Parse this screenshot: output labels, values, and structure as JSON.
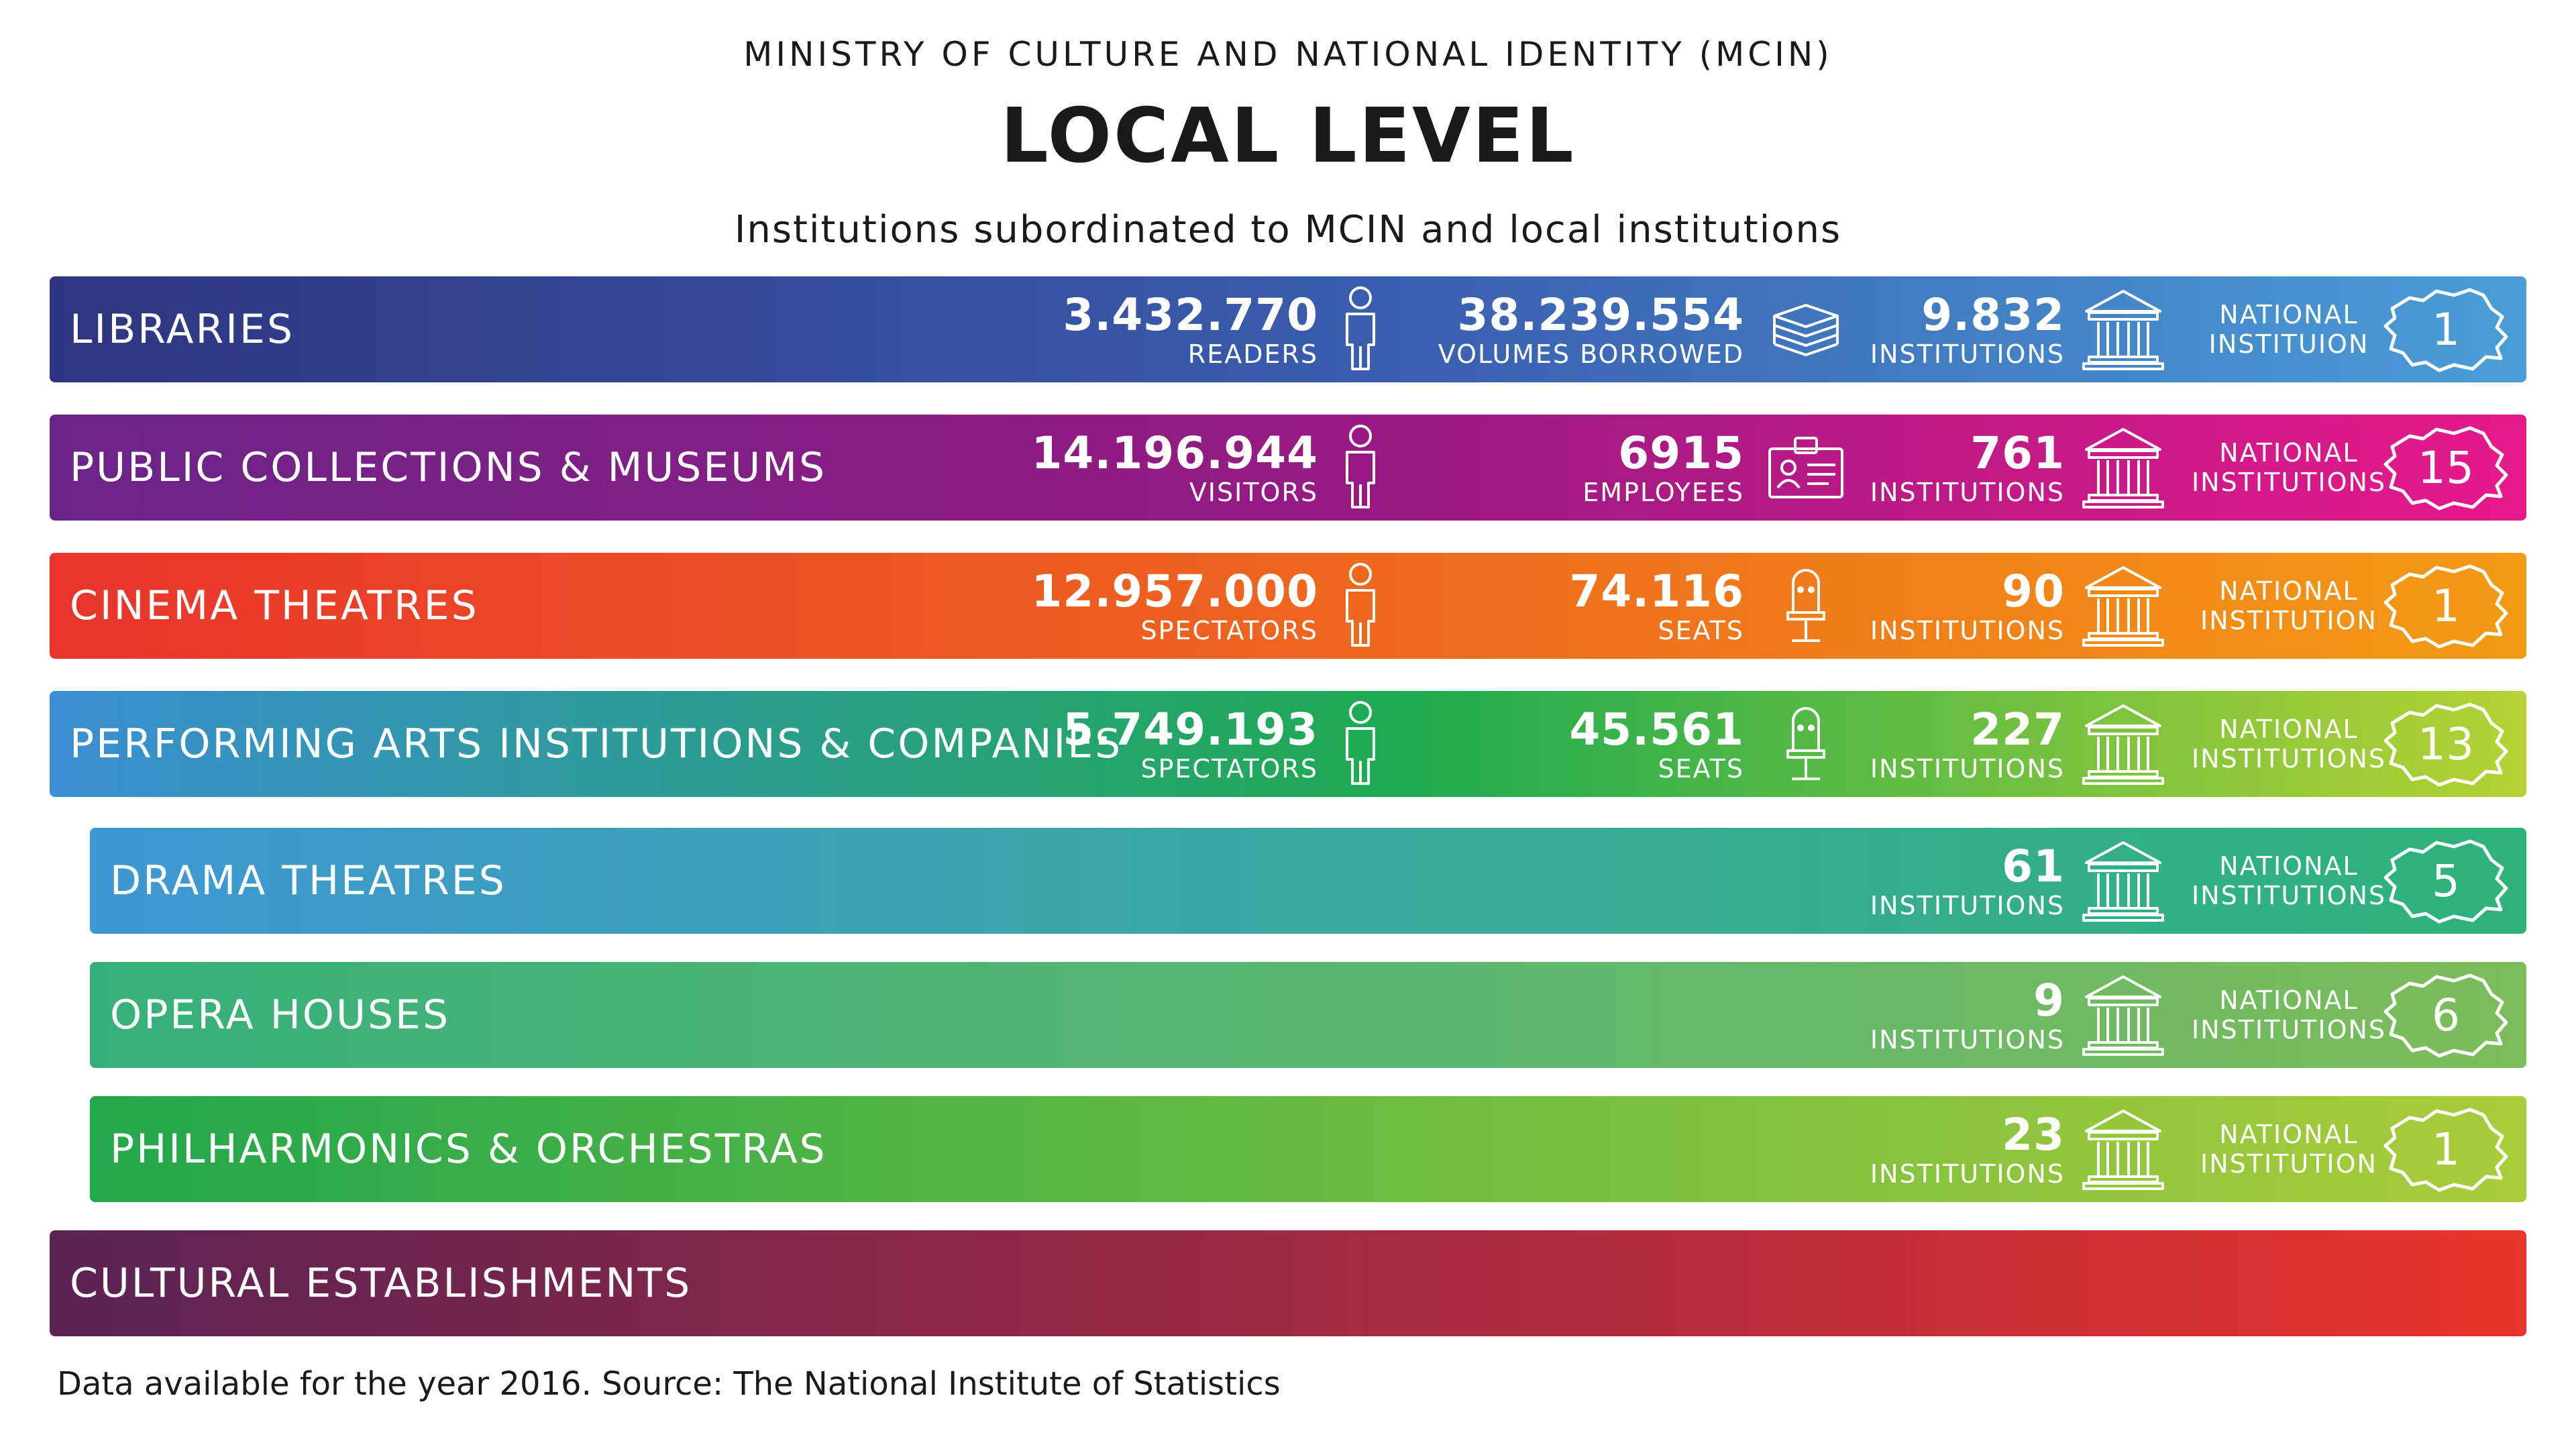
{
  "header": {
    "ministry": "MINISTRY OF CULTURE AND NATIONAL IDENTITY (MCIN)",
    "title": "LOCAL LEVEL",
    "subtitle": "Institutions subordinated to MCIN and local institutions"
  },
  "rows": [
    {
      "name": "LIBRARIES",
      "gradient": [
        "#2e3580",
        "#3a5faf",
        "#4a9ed6"
      ],
      "stat1": {
        "value": "3.432.770",
        "unit": "READERS",
        "icon": "person-icon"
      },
      "stat2": {
        "value": "38.239.554",
        "unit": "VOLUMES BORROWED",
        "icon": "books-icon"
      },
      "institutions": {
        "value": "9.832",
        "unit": "INSTITUTIONS",
        "icon": "building-icon"
      },
      "national": {
        "label1": "NATIONAL",
        "label2": "INSTITUION",
        "count": "1",
        "icon": "romania-map-icon"
      }
    },
    {
      "name": "PUBLIC COLLECTIONS & MUSEUMS",
      "gradient": [
        "#6a2487",
        "#9a1a82",
        "#e6198a"
      ],
      "stat1": {
        "value": "14.196.944",
        "unit": "VISITORS",
        "icon": "person-icon"
      },
      "stat2": {
        "value": "6915",
        "unit": "EMPLOYEES",
        "icon": "id-badge-icon"
      },
      "institutions": {
        "value": "761",
        "unit": "INSTITUTIONS",
        "icon": "building-icon"
      },
      "national": {
        "label1": "NATIONAL",
        "label2": "INSTITUTIONS",
        "count": "15",
        "icon": "romania-map-icon"
      }
    },
    {
      "name": "CINEMA THEATRES",
      "gradient": [
        "#e8342b",
        "#ee6a1e",
        "#f39a14"
      ],
      "stat1": {
        "value": "12.957.000",
        "unit": "SPECTATORS",
        "icon": "person-icon"
      },
      "stat2": {
        "value": "74.116",
        "unit": "SEATS",
        "icon": "seat-icon"
      },
      "institutions": {
        "value": "90",
        "unit": "INSTITUTIONS",
        "icon": "building-icon"
      },
      "national": {
        "label1": "NATIONAL",
        "label2": "INSTITUTION",
        "count": "1",
        "icon": "romania-map-icon"
      }
    },
    {
      "name": "PERFORMING ARTS INSTITUTIONS & COMPANIES",
      "gradient": [
        "#3a8fd1",
        "#1eab4f",
        "#b5d233"
      ],
      "stat1": {
        "value": "5.749.193",
        "unit": "SPECTATORS",
        "icon": "person-icon"
      },
      "stat2": {
        "value": "45.561",
        "unit": "SEATS",
        "icon": "seat-icon"
      },
      "institutions": {
        "value": "227",
        "unit": "INSTITUTIONS",
        "icon": "building-icon"
      },
      "national": {
        "label1": "NATIONAL",
        "label2": "INSTITUTIONS",
        "count": "13",
        "icon": "romania-map-icon"
      }
    },
    {
      "name": "DRAMA THEATRES",
      "gradient": [
        "#3d98d3",
        "#3aa99a",
        "#2db37a"
      ],
      "institutions": {
        "value": "61",
        "unit": "INSTITUTIONS",
        "icon": "building-icon"
      },
      "national": {
        "label1": "NATIONAL",
        "label2": "INSTITUTIONS",
        "count": "5",
        "icon": "romania-map-icon"
      }
    },
    {
      "name": "OPERA HOUSES",
      "gradient": [
        "#36b07a",
        "#5cb76f",
        "#7cbc5a"
      ],
      "institutions": {
        "value": "9",
        "unit": "INSTITUTIONS",
        "icon": "building-icon"
      },
      "national": {
        "label1": "NATIONAL",
        "label2": "INSTITUTIONS",
        "count": "6",
        "icon": "romania-map-icon"
      }
    },
    {
      "name": "PHILHARMONICS & ORCHESTRAS",
      "gradient": [
        "#22a74c",
        "#6ebd3f",
        "#a9cc3a"
      ],
      "institutions": {
        "value": "23",
        "unit": "INSTITUTIONS",
        "icon": "building-icon"
      },
      "national": {
        "label1": "NATIONAL",
        "label2": "INSTITUTION",
        "count": "1",
        "icon": "romania-map-icon"
      }
    },
    {
      "name": "CULTURAL ESTABLISHMENTS",
      "gradient": [
        "#5a2354",
        "#a52a40",
        "#e8342b"
      ]
    }
  ],
  "footer": "Data available for the year 2016. Source: The National Institute of Statistics"
}
